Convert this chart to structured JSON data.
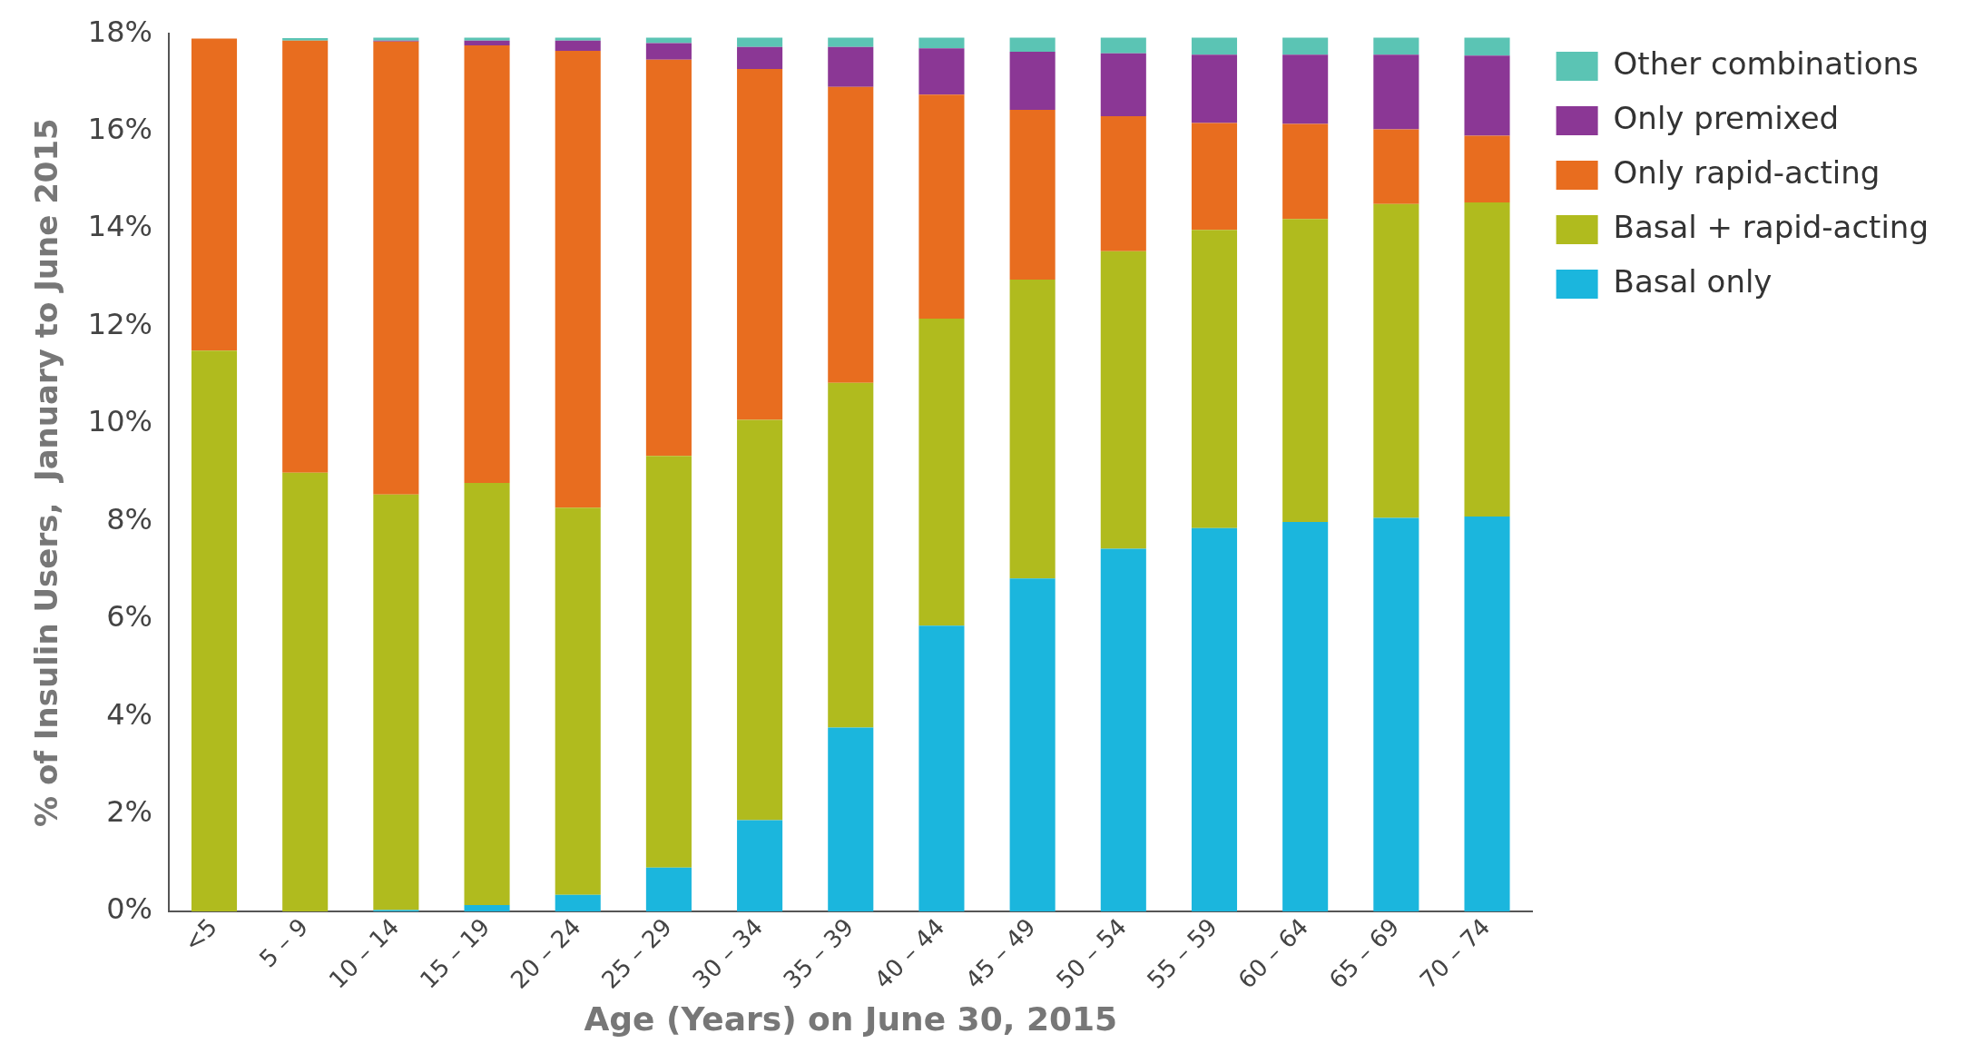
{
  "chart_data": {
    "type": "bar",
    "stacked": true,
    "xlabel": "Age (Years) on June 30, 2015",
    "ylabel": "% of Insulin Users,  January to June 2015",
    "categories": [
      "<5",
      "5 – 9",
      "10 – 14",
      "15 – 19",
      "20 – 24",
      "25 – 29",
      "30 – 34",
      "35 – 39",
      "40 – 44",
      "45 – 49",
      "50 – 54",
      "55 – 59",
      "60 – 64",
      "65 – 69",
      "70 – 74"
    ],
    "series": [
      {
        "name": "Basal only",
        "color": "#1bb6dd",
        "values": [
          0,
          0,
          0.03,
          0.13,
          0.34,
          0.9,
          1.87,
          3.77,
          5.86,
          6.83,
          7.44,
          7.86,
          7.99,
          8.07,
          8.1
        ]
      },
      {
        "name": "Basal + rapid-acting",
        "color": "#b0bb1e",
        "values": [
          11.5,
          9.0,
          8.52,
          8.66,
          7.94,
          8.44,
          8.21,
          7.07,
          6.3,
          6.13,
          6.1,
          6.12,
          6.21,
          6.44,
          6.44
        ]
      },
      {
        "name": "Only rapid-acting",
        "color": "#e86d1f",
        "values": [
          6.4,
          8.86,
          9.29,
          8.97,
          9.37,
          8.13,
          7.2,
          6.07,
          4.59,
          3.48,
          2.77,
          2.19,
          1.95,
          1.53,
          1.37
        ]
      },
      {
        "name": "Only premixed",
        "color": "#8b3795",
        "values": [
          0,
          0,
          0.02,
          0.1,
          0.21,
          0.34,
          0.45,
          0.82,
          0.95,
          1.19,
          1.29,
          1.4,
          1.42,
          1.53,
          1.64
        ]
      },
      {
        "name": "Other combinations",
        "color": "#5bc4b4",
        "values": [
          0,
          0.05,
          0.06,
          0.06,
          0.06,
          0.11,
          0.19,
          0.19,
          0.22,
          0.29,
          0.32,
          0.35,
          0.35,
          0.35,
          0.37
        ]
      }
    ],
    "ylim": [
      0,
      18
    ],
    "yticks": [
      {
        "value": 0,
        "label": "0%"
      },
      {
        "value": 2,
        "label": "2%"
      },
      {
        "value": 4,
        "label": "4%"
      },
      {
        "value": 6,
        "label": "6%"
      },
      {
        "value": 8,
        "label": "8%"
      },
      {
        "value": 10,
        "label": "10%"
      },
      {
        "value": 12,
        "label": "12%"
      },
      {
        "value": 14,
        "label": "14%"
      },
      {
        "value": 16,
        "label": "16%"
      },
      {
        "value": 18,
        "label": "18%"
      }
    ],
    "grid": false,
    "legend": "right"
  }
}
